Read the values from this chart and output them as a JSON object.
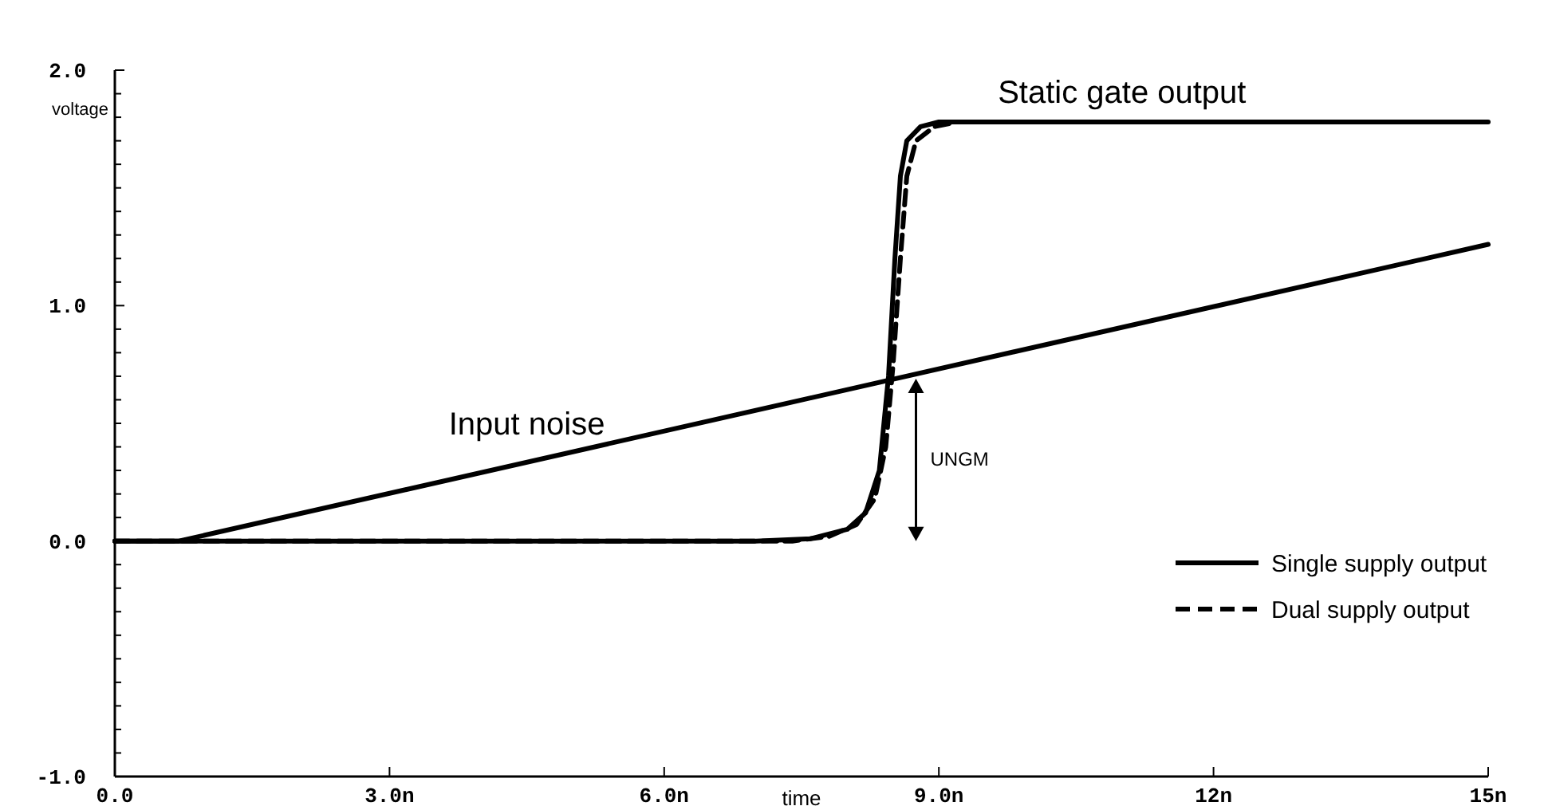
{
  "chart_data": {
    "type": "line",
    "xlabel": "time",
    "ylabel": "voltage",
    "xlim": [
      0,
      15
    ],
    "ylim": [
      -1,
      2
    ],
    "xticks": [
      {
        "value": 0,
        "label": "0.0"
      },
      {
        "value": 3,
        "label": "3.0n"
      },
      {
        "value": 6,
        "label": "6.0n"
      },
      {
        "value": 9,
        "label": "9.0n"
      },
      {
        "value": 12,
        "label": "12n"
      },
      {
        "value": 15,
        "label": "15n"
      }
    ],
    "yticks": [
      {
        "value": -1,
        "label": "-1.0"
      },
      {
        "value": -0.9,
        "label": null
      },
      {
        "value": -0.8,
        "label": null
      },
      {
        "value": -0.7,
        "label": null
      },
      {
        "value": -0.6,
        "label": null
      },
      {
        "value": -0.5,
        "label": null
      },
      {
        "value": -0.4,
        "label": null
      },
      {
        "value": -0.3,
        "label": null
      },
      {
        "value": -0.2,
        "label": null
      },
      {
        "value": -0.1,
        "label": null
      },
      {
        "value": 0,
        "label": "0.0"
      },
      {
        "value": 0.1,
        "label": null
      },
      {
        "value": 0.2,
        "label": null
      },
      {
        "value": 0.3,
        "label": null
      },
      {
        "value": 0.4,
        "label": null
      },
      {
        "value": 0.5,
        "label": null
      },
      {
        "value": 0.6,
        "label": null
      },
      {
        "value": 0.7,
        "label": null
      },
      {
        "value": 0.8,
        "label": null
      },
      {
        "value": 0.9,
        "label": null
      },
      {
        "value": 1,
        "label": "1.0"
      },
      {
        "value": 1.1,
        "label": null
      },
      {
        "value": 1.2,
        "label": null
      },
      {
        "value": 1.3,
        "label": null
      },
      {
        "value": 1.4,
        "label": null
      },
      {
        "value": 1.5,
        "label": null
      },
      {
        "value": 1.6,
        "label": null
      },
      {
        "value": 1.7,
        "label": null
      },
      {
        "value": 1.8,
        "label": null
      },
      {
        "value": 1.9,
        "label": null
      },
      {
        "value": 2,
        "label": "2.0"
      }
    ],
    "grid": false,
    "legend": "bottom right",
    "marker": "none",
    "series": [
      {
        "name": "Single supply output",
        "color": "#000000",
        "line_style": "solid",
        "x": [
          0,
          7,
          7.6,
          8.0,
          8.2,
          8.35,
          8.45,
          8.52,
          8.58,
          8.65,
          8.8,
          9.0,
          15
        ],
        "values": [
          0,
          0,
          0.01,
          0.05,
          0.12,
          0.3,
          0.7,
          1.2,
          1.55,
          1.7,
          1.76,
          1.78,
          1.78
        ]
      },
      {
        "name": "Dual supply output",
        "color": "#000000",
        "line_style": "dashed",
        "x": [
          0,
          7.4,
          7.8,
          8.1,
          8.3,
          8.42,
          8.5,
          8.58,
          8.65,
          8.75,
          8.95,
          9.2,
          15
        ],
        "values": [
          0,
          0,
          0.02,
          0.07,
          0.18,
          0.4,
          0.75,
          1.2,
          1.55,
          1.7,
          1.76,
          1.78,
          1.78
        ]
      },
      {
        "color": "#000000",
        "line_style": "solid",
        "x": [
          0,
          0.7,
          15
        ],
        "values": [
          0,
          0,
          1.26
        ]
      }
    ],
    "annotations": [
      {
        "text": "Static gate output",
        "x": 11,
        "y": 1.78
      },
      "Input noise",
      "UNGM"
    ]
  }
}
